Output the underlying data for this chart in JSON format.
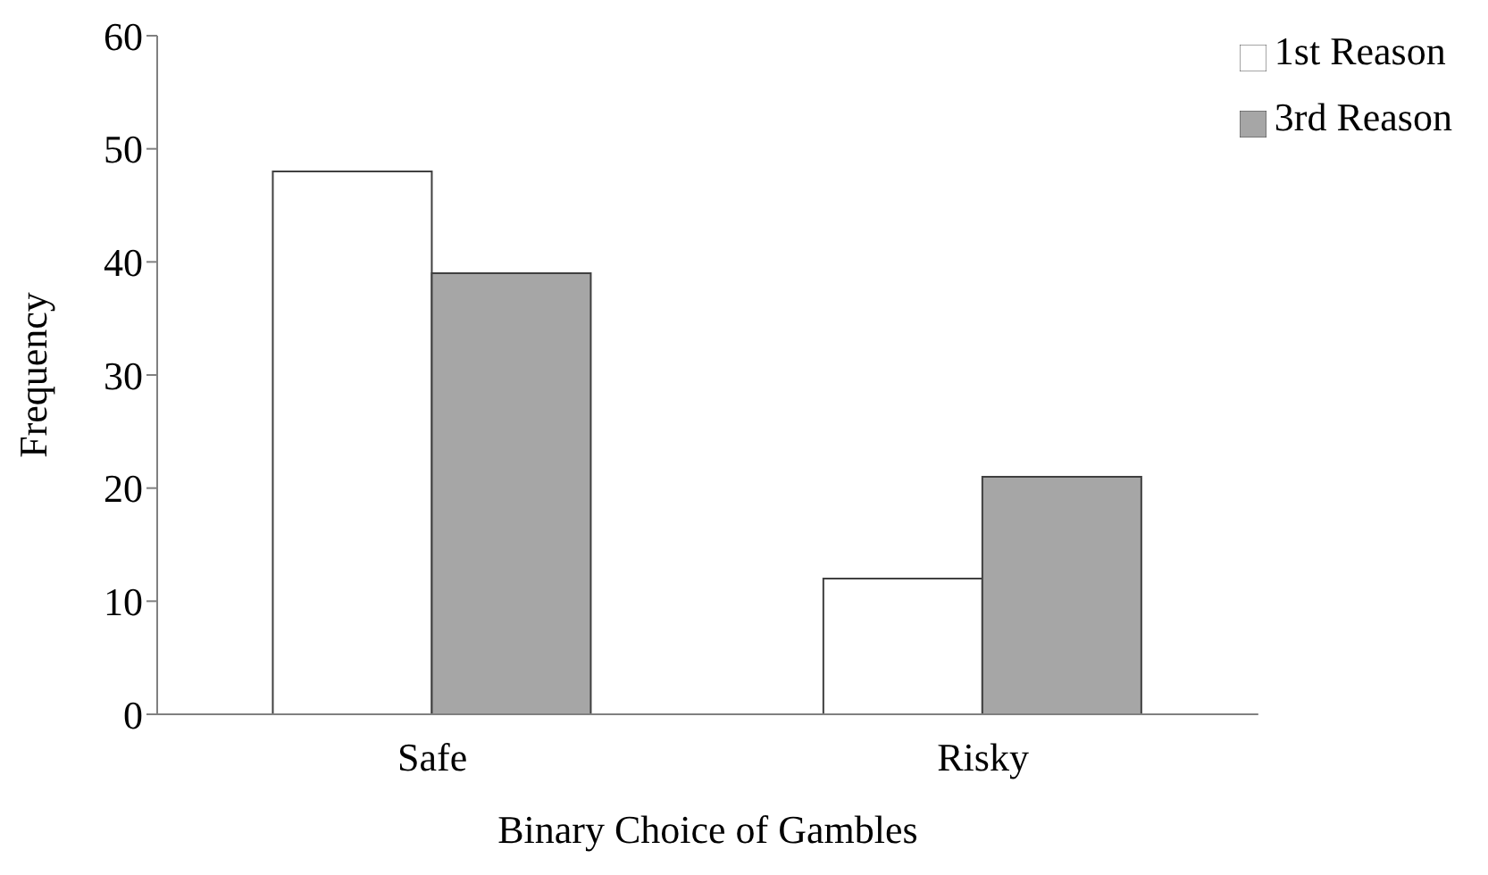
{
  "chart_data": {
    "type": "bar",
    "xlabel": "Binary Choice of Gambles",
    "ylabel": "Frequency",
    "categories": [
      "Safe",
      "Risky"
    ],
    "series": [
      {
        "name": "1st Reason",
        "color": "#ffffff",
        "values": [
          48,
          12
        ]
      },
      {
        "name": "3rd Reason",
        "color": "#a6a6a6",
        "values": [
          39,
          21
        ]
      }
    ],
    "ylim": [
      0,
      60
    ],
    "yticks": [
      0,
      10,
      20,
      30,
      40,
      50,
      60
    ],
    "grid": false,
    "legend": "top right"
  }
}
